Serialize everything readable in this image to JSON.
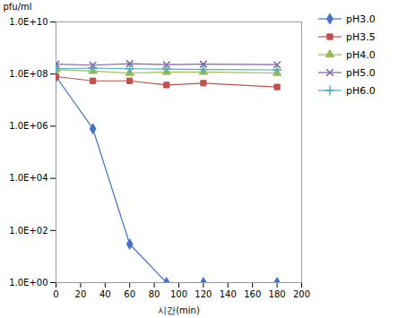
{
  "chart_data": {
    "type": "line",
    "x": [
      0,
      30,
      60,
      90,
      120,
      180
    ],
    "series": [
      {
        "name": "pH3.0",
        "color": "#4472C4",
        "marker": "diamond",
        "values": [
          80000000.0,
          800000.0,
          30,
          1,
          1,
          1
        ]
      },
      {
        "name": "pH3.5",
        "color": "#C0504D",
        "marker": "square",
        "values": [
          80000000.0,
          55000000.0,
          55000000.0,
          38000000.0,
          45000000.0,
          32000000.0
        ]
      },
      {
        "name": "pH4.0",
        "color": "#9BBB59",
        "marker": "triangle",
        "values": [
          150000000.0,
          130000000.0,
          110000000.0,
          120000000.0,
          120000000.0,
          110000000.0
        ]
      },
      {
        "name": "pH5.0",
        "color": "#8064A2",
        "marker": "x",
        "values": [
          240000000.0,
          220000000.0,
          250000000.0,
          230000000.0,
          240000000.0,
          230000000.0
        ]
      },
      {
        "name": "pH6.0",
        "color": "#4BACC6",
        "marker": "plus",
        "values": [
          160000000.0,
          170000000.0,
          160000000.0,
          155000000.0,
          150000000.0,
          145000000.0
        ]
      }
    ],
    "xlabel": "시간(min)",
    "ylabel": "pfu/ml",
    "xlim": [
      0,
      200
    ],
    "xticks": [
      0,
      20,
      40,
      60,
      80,
      100,
      120,
      140,
      160,
      180,
      200
    ],
    "ylim": [
      1,
      10000000000
    ],
    "yticks": [
      {
        "value": 1,
        "label": "1.0E+00"
      },
      {
        "value": 100,
        "label": "1.0E+02"
      },
      {
        "value": 10000,
        "label": "1.0E+04"
      },
      {
        "value": 1000000,
        "label": "1.0E+06"
      },
      {
        "value": 100000000,
        "label": "1.0E+08"
      },
      {
        "value": 10000000000,
        "label": "1.0E+10"
      }
    ],
    "log": "y",
    "grid": false,
    "legend": "right"
  }
}
